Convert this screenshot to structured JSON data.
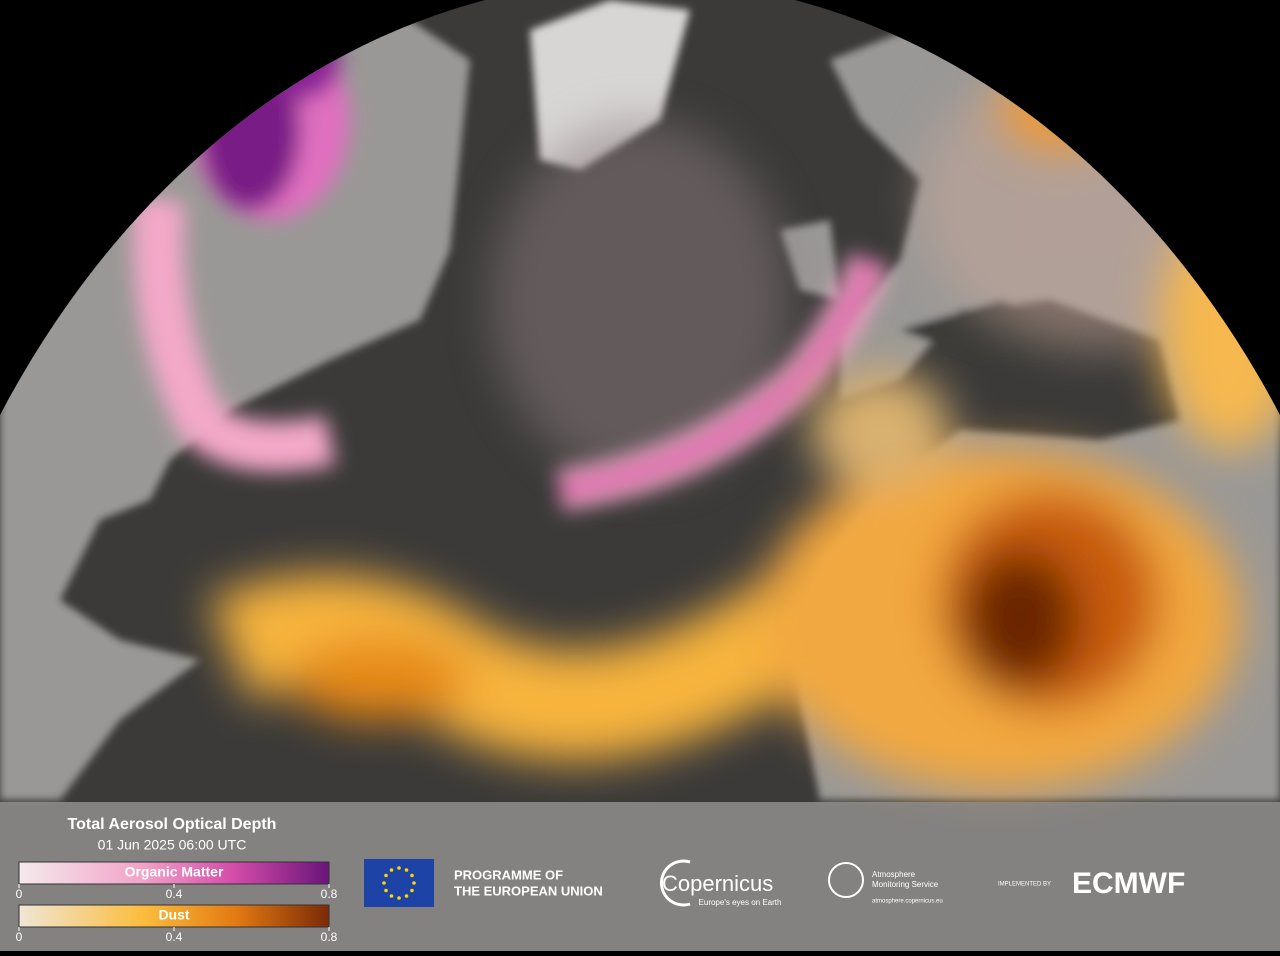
{
  "header": {
    "title": "Total Aerosol Optical Depth",
    "date": "01 Jun 2025 06:00 UTC"
  },
  "legend": {
    "scales": [
      {
        "label": "Organic Matter",
        "ticks": [
          0,
          0.4,
          0.8
        ]
      },
      {
        "label": "Dust",
        "ticks": [
          0,
          0.4,
          0.8
        ]
      }
    ]
  },
  "logos": {
    "eu": [
      "PROGRAMME OF",
      "THE EUROPEAN UNION"
    ],
    "copernicus": {
      "name": "Copernicus",
      "tagline": "Europe's eyes on Earth"
    },
    "cams": {
      "lines": [
        "Atmosphere",
        "Monitoring Service"
      ],
      "url": "atmosphere.copernicus.eu"
    },
    "ecmwf": {
      "prefix": "IMPLEMENTED BY",
      "name": "ECMWF"
    }
  }
}
